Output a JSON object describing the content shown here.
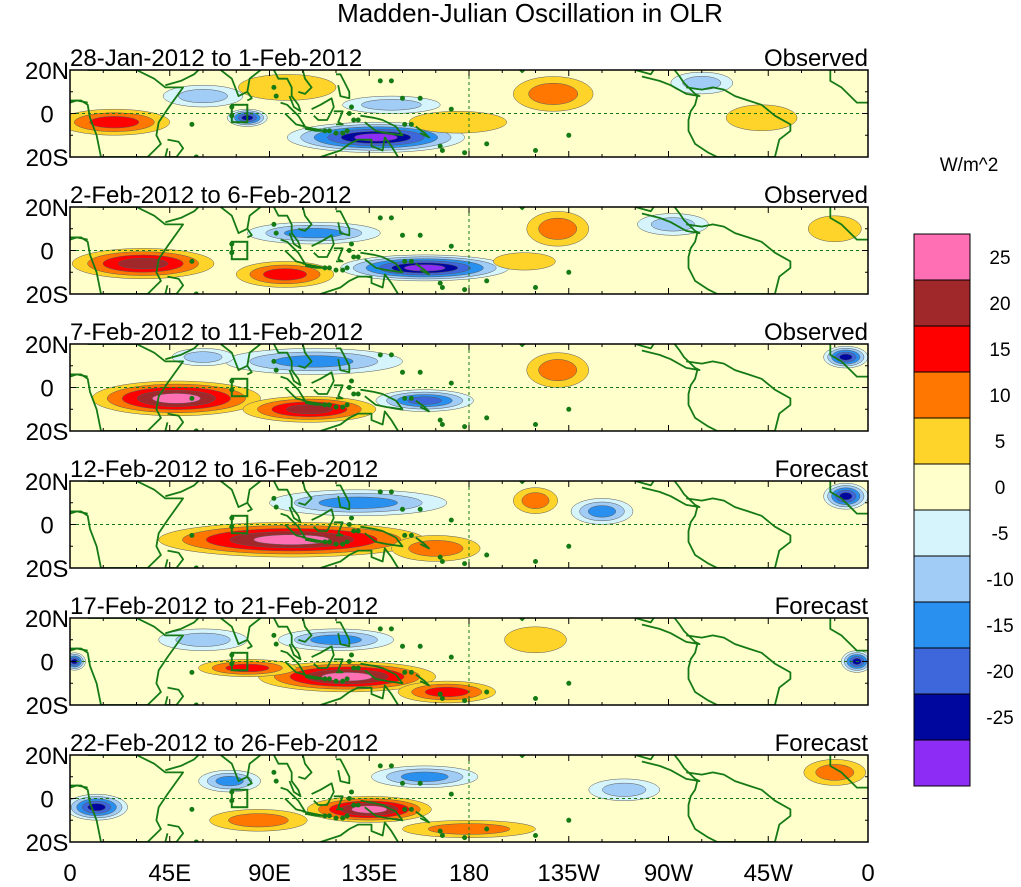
{
  "chart_data": {
    "type": "heatmap",
    "title": "Madden-Julian Oscillation in OLR",
    "units": "W/m^2",
    "y_ticks": [
      "20N",
      "0",
      "20S"
    ],
    "x_ticks": [
      "0",
      "45E",
      "90E",
      "135E",
      "180",
      "135W",
      "90W",
      "45W",
      "0"
    ],
    "x_range": [
      0,
      360
    ],
    "y_range": [
      -20,
      20
    ],
    "colorbar": {
      "levels": [
        25,
        20,
        15,
        10,
        5,
        0,
        -5,
        -10,
        -15,
        -20,
        -25
      ],
      "colors": [
        "#ff6fb4",
        "#a0282a",
        "#ff0000",
        "#ff7700",
        "#ffd42a",
        "#ffffcc",
        "#d6f4fb",
        "#a0ccf6",
        "#2a90ef",
        "#3f67dc",
        "#00079e",
        "#8c2cf5"
      ]
    },
    "panels": [
      {
        "period": "28-Jan-2012 to 1-Feb-2012",
        "status": "Observed",
        "anomalies": [
          {
            "lon": 20,
            "lat": -4,
            "rlon": 25,
            "rlat": 6,
            "value": 18
          },
          {
            "lon": 80,
            "lat": -2,
            "rlon": 9,
            "rlat": 4,
            "value": -23
          },
          {
            "lon": 138,
            "lat": -11,
            "rlon": 40,
            "rlat": 7,
            "value": -27
          },
          {
            "lon": 98,
            "lat": 12,
            "rlon": 22,
            "rlat": 6,
            "value": 8
          },
          {
            "lon": 218,
            "lat": 9,
            "rlon": 18,
            "rlat": 8,
            "value": 13
          },
          {
            "lon": 175,
            "lat": -4,
            "rlon": 22,
            "rlat": 5,
            "value": 8
          },
          {
            "lon": 145,
            "lat": 4,
            "rlon": 22,
            "rlat": 4,
            "value": -8
          },
          {
            "lon": 60,
            "lat": 8,
            "rlon": 18,
            "rlat": 5,
            "value": -8
          },
          {
            "lon": 312,
            "lat": -2,
            "rlon": 16,
            "rlat": 6,
            "value": 6
          },
          {
            "lon": 285,
            "lat": 14,
            "rlon": 14,
            "rlat": 5,
            "value": -8
          }
        ]
      },
      {
        "period": "2-Feb-2012 to 6-Feb-2012",
        "status": "Observed",
        "anomalies": [
          {
            "lon": 33,
            "lat": -6,
            "rlon": 32,
            "rlat": 7,
            "value": 23
          },
          {
            "lon": 97,
            "lat": -11,
            "rlon": 22,
            "rlat": 6,
            "value": 17
          },
          {
            "lon": 160,
            "lat": -8,
            "rlon": 38,
            "rlat": 6,
            "value": -26
          },
          {
            "lon": 220,
            "lat": 10,
            "rlon": 14,
            "rlat": 8,
            "value": 14
          },
          {
            "lon": 205,
            "lat": -5,
            "rlon": 14,
            "rlat": 4,
            "value": 8
          },
          {
            "lon": 345,
            "lat": 10,
            "rlon": 12,
            "rlat": 6,
            "value": 8
          },
          {
            "lon": 110,
            "lat": 8,
            "rlon": 30,
            "rlat": 5,
            "value": -10
          },
          {
            "lon": 272,
            "lat": 12,
            "rlon": 16,
            "rlat": 5,
            "value": -6
          }
        ]
      },
      {
        "period": "7-Feb-2012 to 11-Feb-2012",
        "status": "Observed",
        "anomalies": [
          {
            "lon": 48,
            "lat": -5,
            "rlon": 38,
            "rlat": 8,
            "value": 26
          },
          {
            "lon": 108,
            "lat": -10,
            "rlon": 30,
            "rlat": 6,
            "value": 22
          },
          {
            "lon": 160,
            "lat": -6,
            "rlon": 22,
            "rlat": 5,
            "value": -18
          },
          {
            "lon": 220,
            "lat": 8,
            "rlon": 14,
            "rlat": 8,
            "value": 13
          },
          {
            "lon": 350,
            "lat": 14,
            "rlon": 10,
            "rlat": 5,
            "value": -23
          },
          {
            "lon": 110,
            "lat": 12,
            "rlon": 40,
            "rlat": 6,
            "value": -11
          },
          {
            "lon": 60,
            "lat": 14,
            "rlon": 14,
            "rlat": 4,
            "value": -8
          }
        ]
      },
      {
        "period": "12-Feb-2012 to 16-Feb-2012",
        "status": "Forecast",
        "anomalies": [
          {
            "lon": 100,
            "lat": -7,
            "rlon": 60,
            "rlat": 8,
            "value": 26
          },
          {
            "lon": 165,
            "lat": -11,
            "rlon": 20,
            "rlat": 6,
            "value": 14
          },
          {
            "lon": 210,
            "lat": 11,
            "rlon": 10,
            "rlat": 6,
            "value": 12
          },
          {
            "lon": 350,
            "lat": 13,
            "rlon": 10,
            "rlat": 6,
            "value": -20
          },
          {
            "lon": 130,
            "lat": 10,
            "rlon": 40,
            "rlat": 6,
            "value": -12
          },
          {
            "lon": 240,
            "lat": 6,
            "rlon": 14,
            "rlat": 6,
            "value": -10
          }
        ]
      },
      {
        "period": "17-Feb-2012 to 21-Feb-2012",
        "status": "Forecast",
        "anomalies": [
          {
            "lon": 125,
            "lat": -7,
            "rlon": 40,
            "rlat": 7,
            "value": 27
          },
          {
            "lon": 80,
            "lat": -3,
            "rlon": 22,
            "rlat": 4,
            "value": 15
          },
          {
            "lon": 170,
            "lat": -14,
            "rlon": 22,
            "rlat": 5,
            "value": 15
          },
          {
            "lon": 2,
            "lat": 0,
            "rlon": 5,
            "rlat": 4,
            "value": -23
          },
          {
            "lon": 355,
            "lat": 0,
            "rlon": 7,
            "rlat": 5,
            "value": -20
          },
          {
            "lon": 210,
            "lat": 10,
            "rlon": 14,
            "rlat": 6,
            "value": 8
          },
          {
            "lon": 120,
            "lat": 10,
            "rlon": 26,
            "rlat": 5,
            "value": -12
          },
          {
            "lon": 60,
            "lat": 10,
            "rlon": 20,
            "rlat": 5,
            "value": -8
          }
        ]
      },
      {
        "period": "22-Feb-2012 to 26-Feb-2012",
        "status": "Forecast",
        "anomalies": [
          {
            "lon": 135,
            "lat": -5,
            "rlon": 28,
            "rlat": 6,
            "value": 26
          },
          {
            "lon": 85,
            "lat": -10,
            "rlon": 22,
            "rlat": 5,
            "value": 12
          },
          {
            "lon": 180,
            "lat": -14,
            "rlon": 30,
            "rlat": 4,
            "value": 10
          },
          {
            "lon": 12,
            "lat": -4,
            "rlon": 14,
            "rlat": 6,
            "value": -22
          },
          {
            "lon": 345,
            "lat": 12,
            "rlon": 14,
            "rlat": 6,
            "value": 10
          },
          {
            "lon": 72,
            "lat": 8,
            "rlon": 14,
            "rlat": 5,
            "value": -12
          },
          {
            "lon": 160,
            "lat": 10,
            "rlon": 24,
            "rlat": 5,
            "value": -10
          },
          {
            "lon": 250,
            "lat": 4,
            "rlon": 16,
            "rlat": 5,
            "value": -8
          }
        ]
      }
    ]
  }
}
